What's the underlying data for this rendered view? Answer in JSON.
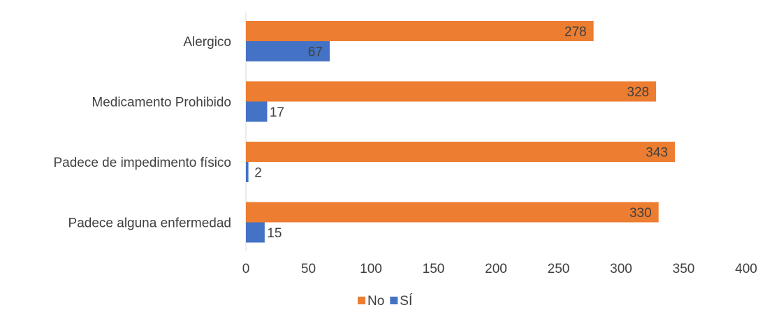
{
  "chart_data": {
    "type": "bar",
    "orientation": "horizontal",
    "categories": [
      "Alergico",
      "Medicamento Prohibido",
      "Padece de impedimento físico",
      "Padece alguna enfermedad"
    ],
    "series": [
      {
        "name": "No",
        "values": [
          278,
          328,
          343,
          330
        ],
        "color": "#ED7D31"
      },
      {
        "name": "SÍ",
        "values": [
          67,
          17,
          2,
          15
        ],
        "color": "#4472C4"
      }
    ],
    "xlim": [
      0,
      400
    ],
    "x_ticks": [
      0,
      50,
      100,
      150,
      200,
      250,
      300,
      350,
      400
    ],
    "grid": false,
    "legend_position": "bottom",
    "data_labels": true
  }
}
